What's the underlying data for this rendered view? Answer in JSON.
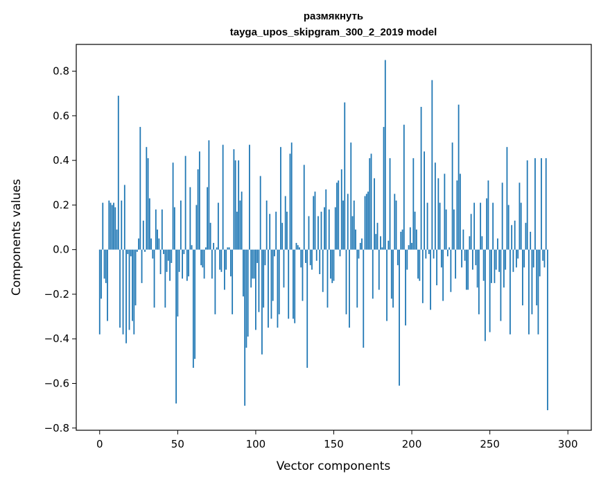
{
  "chart_data": {
    "type": "bar",
    "title_line1": "размякнуть",
    "title_line2": "tayga_upos_skipgram_300_2_2019 model",
    "xlabel": "Vector components",
    "ylabel": "Components values",
    "xlim": [
      -15,
      315
    ],
    "ylim": [
      -0.81,
      0.92
    ],
    "x_ticks": [
      0,
      50,
      100,
      150,
      200,
      250,
      300
    ],
    "x_tick_labels": [
      "0",
      "50",
      "100",
      "150",
      "200",
      "250",
      "300"
    ],
    "y_ticks": [
      -0.8,
      -0.6,
      -0.4,
      -0.2,
      0.0,
      0.2,
      0.4,
      0.6,
      0.8
    ],
    "y_tick_labels": [
      "−0.8",
      "−0.6",
      "−0.4",
      "−0.2",
      "0.0",
      "0.2",
      "0.4",
      "0.6",
      "0.8"
    ],
    "grid": false,
    "bar_color": "#1f77b4",
    "values": [
      -0.38,
      -0.22,
      0.21,
      -0.13,
      -0.15,
      -0.32,
      0.22,
      0.21,
      0.2,
      0.21,
      0.19,
      0.09,
      0.69,
      -0.35,
      0.22,
      -0.38,
      0.29,
      -0.42,
      -0.02,
      -0.36,
      -0.03,
      -0.32,
      -0.38,
      -0.25,
      -0.01,
      0.05,
      0.55,
      -0.15,
      0.13,
      -0.01,
      0.46,
      0.41,
      0.23,
      0.05,
      -0.04,
      -0.26,
      0.18,
      0.09,
      0.05,
      -0.11,
      0.18,
      -0.02,
      -0.26,
      -0.1,
      -0.05,
      -0.14,
      -0.06,
      0.39,
      0.19,
      -0.69,
      -0.3,
      -0.1,
      0.22,
      -0.13,
      -0.02,
      0.42,
      -0.14,
      -0.12,
      0.28,
      0.02,
      -0.53,
      -0.49,
      0.2,
      0.36,
      0.44,
      -0.07,
      -0.08,
      -0.13,
      0.01,
      0.28,
      0.49,
      0.12,
      -0.13,
      0.03,
      -0.29,
      0.01,
      0.21,
      -0.09,
      -0.1,
      0.47,
      -0.18,
      -0.09,
      0.01,
      0.01,
      -0.12,
      -0.29,
      0.45,
      0.4,
      0.17,
      0.4,
      0.22,
      0.26,
      -0.21,
      -0.7,
      -0.44,
      -0.39,
      0.47,
      -0.17,
      -0.13,
      -0.13,
      -0.36,
      -0.06,
      -0.28,
      0.33,
      -0.47,
      -0.26,
      -0.07,
      0.22,
      -0.35,
      0.16,
      -0.31,
      -0.23,
      -0.03,
      0.17,
      -0.35,
      -0.29,
      0.46,
      0.12,
      -0.17,
      0.24,
      0.17,
      -0.31,
      0.43,
      0.48,
      -0.31,
      -0.33,
      0.03,
      0.02,
      0.01,
      -0.08,
      -0.23,
      0.38,
      -0.06,
      -0.53,
      0.15,
      -0.07,
      -0.09,
      0.24,
      0.26,
      -0.05,
      0.15,
      -0.11,
      0.17,
      -0.19,
      0.19,
      0.27,
      -0.26,
      0.18,
      -0.13,
      -0.15,
      -0.14,
      0.19,
      0.3,
      0.31,
      -0.03,
      0.36,
      0.22,
      0.66,
      -0.29,
      0.25,
      -0.35,
      0.48,
      0.15,
      0.22,
      0.09,
      -0.26,
      -0.04,
      0.03,
      0.05,
      -0.44,
      0.24,
      0.25,
      0.26,
      0.41,
      0.43,
      -0.22,
      0.32,
      0.07,
      0.12,
      -0.18,
      0.06,
      0.01,
      0.55,
      0.85,
      -0.32,
      0.04,
      0.41,
      -0.22,
      -0.26,
      0.25,
      0.22,
      -0.07,
      -0.61,
      0.08,
      0.09,
      0.56,
      -0.34,
      -0.09,
      0.02,
      0.1,
      0.03,
      0.41,
      0.17,
      0.09,
      -0.13,
      -0.14,
      0.64,
      -0.24,
      0.44,
      -0.04,
      0.21,
      -0.02,
      -0.27,
      0.76,
      -0.04,
      0.39,
      -0.16,
      0.32,
      0.21,
      -0.08,
      -0.23,
      0.34,
      0.18,
      -0.03,
      0.01,
      -0.19,
      0.48,
      0.18,
      -0.13,
      0.31,
      0.65,
      0.34,
      -0.08,
      0.09,
      -0.05,
      -0.18,
      -0.18,
      0.06,
      0.16,
      -0.09,
      0.21,
      -0.07,
      -0.17,
      -0.29,
      0.21,
      0.06,
      -0.14,
      -0.41,
      0.23,
      0.31,
      -0.37,
      -0.15,
      0.21,
      -0.15,
      -0.09,
      0.05,
      -0.1,
      -0.32,
      0.3,
      -0.17,
      -0.09,
      0.46,
      0.2,
      -0.38,
      0.11,
      -0.1,
      0.13,
      -0.08,
      -0.04,
      0.3,
      0.21,
      -0.25,
      -0.08,
      0.12,
      0.4,
      -0.38,
      0.08,
      -0.29,
      -0.08,
      0.41,
      -0.25,
      -0.38,
      -0.12,
      0.41,
      -0.05,
      -0.08,
      0.41,
      -0.72
    ]
  }
}
